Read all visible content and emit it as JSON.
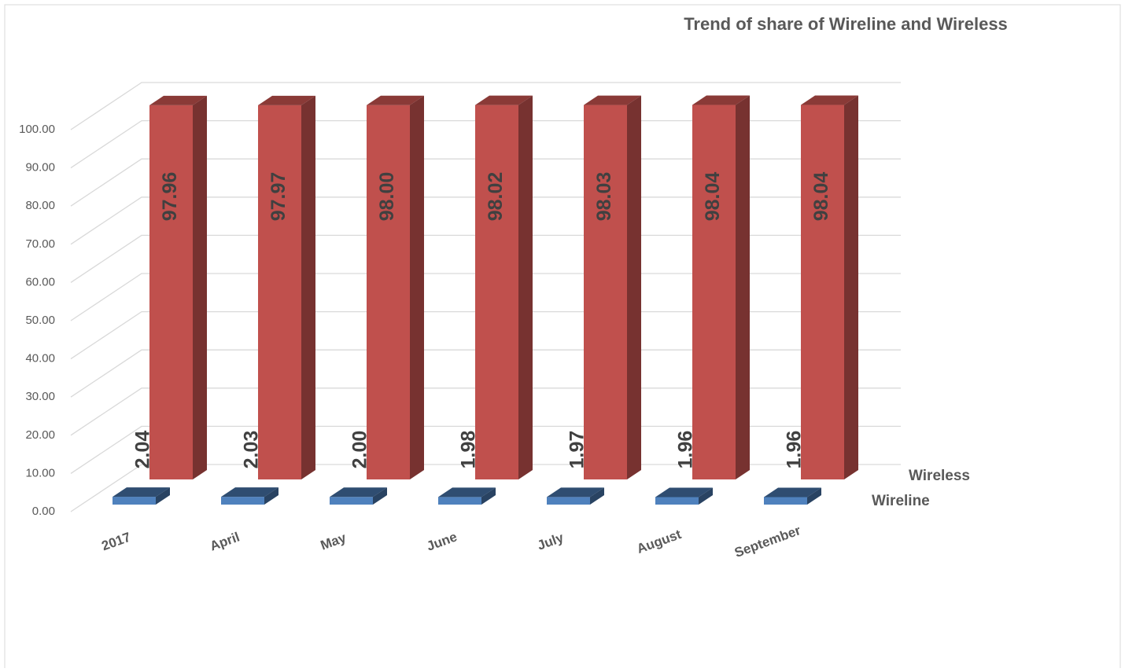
{
  "chart_data": {
    "type": "bar3d",
    "title": "Trend of  share of Wireline and Wireless",
    "categories": [
      "2017",
      "April",
      "May",
      "June",
      "July",
      "August",
      "September"
    ],
    "series": [
      {
        "name": "Wireline",
        "color": "#4f81bd",
        "values": [
          2.04,
          2.03,
          2.0,
          1.98,
          1.97,
          1.96,
          1.96
        ],
        "value_labels": [
          "2.04",
          "2.03",
          "2.00",
          "1.98",
          "1.97",
          "1.96",
          "1.96"
        ]
      },
      {
        "name": "Wireless",
        "color": "#c0504d",
        "values": [
          97.96,
          97.97,
          98.0,
          98.02,
          98.03,
          98.04,
          98.04
        ],
        "value_labels": [
          "97.96",
          "97.97",
          "98.00",
          "98.02",
          "98.03",
          "98.04",
          "98.04"
        ]
      }
    ],
    "ylim": [
      0,
      100
    ],
    "yticks": [
      {
        "value": 0,
        "label": "0.00"
      },
      {
        "value": 10,
        "label": "10.00"
      },
      {
        "value": 20,
        "label": "20.00"
      },
      {
        "value": 30,
        "label": "30.00"
      },
      {
        "value": 40,
        "label": "40.00"
      },
      {
        "value": 50,
        "label": "50.00"
      },
      {
        "value": 60,
        "label": "60.00"
      },
      {
        "value": 70,
        "label": "70.00"
      },
      {
        "value": 80,
        "label": "80.00"
      },
      {
        "value": 90,
        "label": "90.00"
      },
      {
        "value": 100,
        "label": "100.00"
      }
    ],
    "grid": true
  }
}
